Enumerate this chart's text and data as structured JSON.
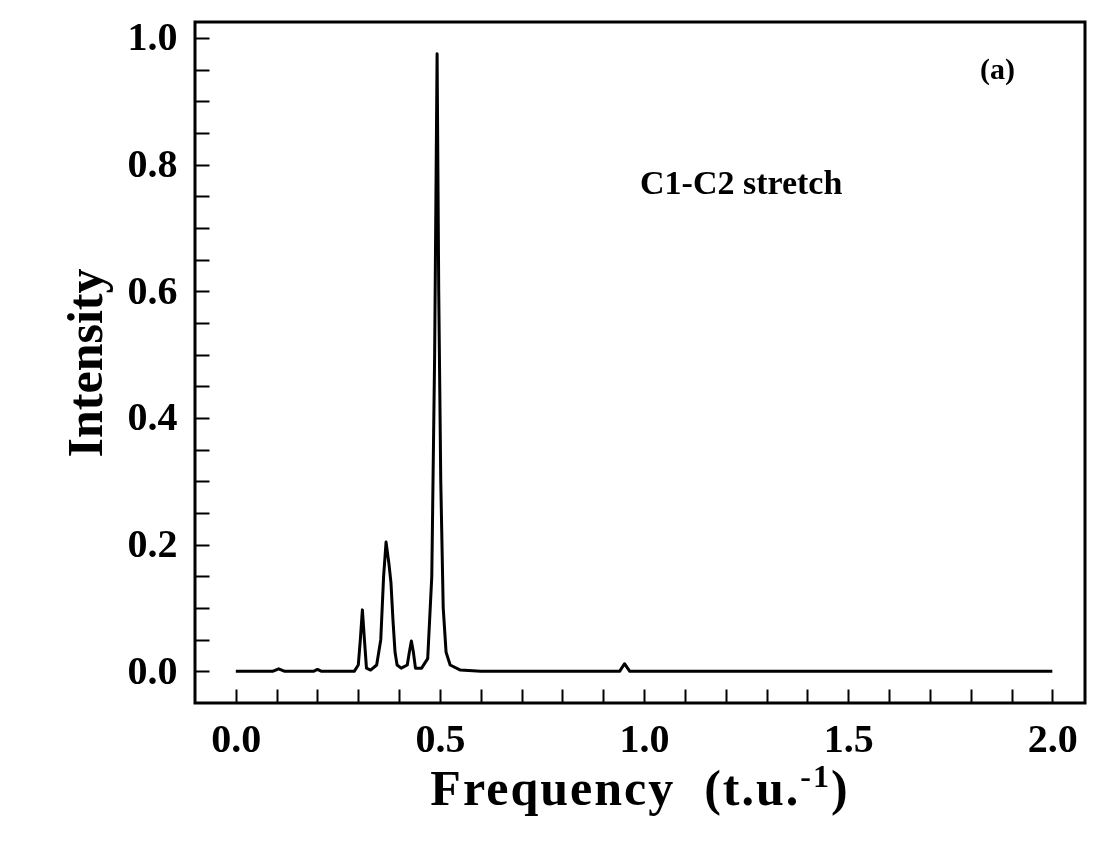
{
  "chart_data": {
    "type": "line",
    "xlabel": "Frequency  (t.u.$^{-1}$)",
    "ylabel": "Intensity",
    "annotations": [
      "(a)",
      "C1-C2  stretch"
    ],
    "x": [
      0,
      0.09,
      0.105,
      0.12,
      0.19,
      0.2,
      0.21,
      0.29,
      0.3,
      0.305,
      0.31,
      0.315,
      0.32,
      0.33,
      0.345,
      0.355,
      0.362,
      0.368,
      0.375,
      0.38,
      0.385,
      0.39,
      0.395,
      0.405,
      0.42,
      0.425,
      0.43,
      0.435,
      0.44,
      0.455,
      0.47,
      0.48,
      0.487,
      0.493,
      0.497,
      0.502,
      0.508,
      0.515,
      0.525,
      0.55,
      0.6,
      0.94,
      0.952,
      0.965,
      2.0
    ],
    "series": [
      {
        "color": "#000000",
        "values": [
          0,
          0,
          0.004,
          0,
          0,
          0.003,
          0,
          0,
          0.01,
          0.05,
          0.097,
          0.05,
          0.005,
          0.002,
          0.01,
          0.05,
          0.15,
          0.204,
          0.17,
          0.14,
          0.08,
          0.03,
          0.01,
          0.005,
          0.01,
          0.03,
          0.048,
          0.03,
          0.005,
          0.005,
          0.02,
          0.15,
          0.5,
          0.975,
          0.6,
          0.3,
          0.1,
          0.03,
          0.01,
          0.002,
          0,
          0,
          0.012,
          0,
          0
        ]
      }
    ],
    "xlim": [
      -0.1,
      2.08
    ],
    "ylim": [
      -0.05,
      1.025
    ],
    "xticks": [
      {
        "value": 0,
        "label": "0.0"
      },
      {
        "value": 0.1,
        "label": null
      },
      {
        "value": 0.2,
        "label": null
      },
      {
        "value": 0.3,
        "label": null
      },
      {
        "value": 0.4,
        "label": null
      },
      0.5,
      {
        "value": 0.6,
        "label": null
      },
      {
        "value": 0.7,
        "label": null
      },
      {
        "value": 0.8,
        "label": null
      },
      {
        "value": 0.9,
        "label": null
      },
      {
        "value": 1,
        "label": "1.0"
      },
      {
        "value": 1.1,
        "label": null
      },
      {
        "value": 1.2,
        "label": null
      },
      {
        "value": 1.3,
        "label": null
      },
      {
        "value": 1.4,
        "label": null
      },
      1.5,
      {
        "value": 1.6,
        "label": null
      },
      {
        "value": 1.7,
        "label": null
      },
      {
        "value": 1.8,
        "label": null
      },
      {
        "value": 1.9,
        "label": null
      },
      {
        "value": 2,
        "label": "2.0"
      }
    ],
    "yticks": [
      {
        "value": 0,
        "label": "0.0"
      },
      {
        "value": 0.05,
        "label": null
      },
      {
        "value": 0.1,
        "label": null
      },
      {
        "value": 0.15,
        "label": null
      },
      0.2,
      {
        "value": 0.25,
        "label": null
      },
      {
        "value": 0.3,
        "label": null
      },
      {
        "value": 0.35,
        "label": null
      },
      0.4,
      {
        "value": 0.45,
        "label": null
      },
      {
        "value": 0.5,
        "label": null
      },
      {
        "value": 0.55,
        "label": null
      },
      0.6,
      {
        "value": 0.65,
        "label": null
      },
      {
        "value": 0.7,
        "label": null
      },
      {
        "value": 0.75,
        "label": null
      },
      0.8,
      {
        "value": 0.85,
        "label": null
      },
      {
        "value": 0.9,
        "label": null
      },
      {
        "value": 0.95,
        "label": null
      },
      {
        "value": 1,
        "label": "1.0"
      }
    ],
    "marker": "none",
    "line_style": "solid"
  }
}
